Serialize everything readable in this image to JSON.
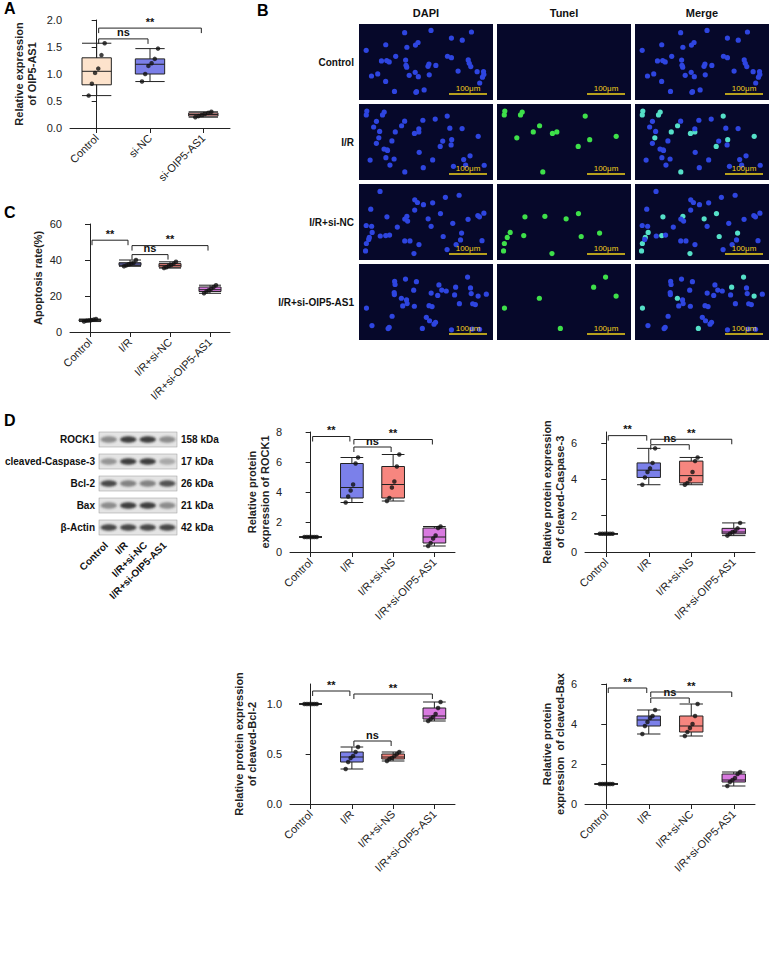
{
  "chart_data": [
    {
      "panel": "A",
      "type": "boxplot",
      "y_label": "Relative expression  of OIP5-AS1",
      "categories": [
        "Control",
        "si-NC",
        "si-OIP5-AS1"
      ],
      "colors": [
        "#fde3cc",
        "#7b7fe8",
        "#f4a3a0"
      ],
      "boxes": [
        [
          0.6,
          0.8,
          1.05,
          1.3,
          1.57
        ],
        [
          0.86,
          1.0,
          1.18,
          1.28,
          1.47
        ],
        [
          0.2,
          0.22,
          0.25,
          0.28,
          0.3
        ]
      ],
      "points": [
        [
          0.6,
          0.82,
          1.02,
          1.1,
          1.35,
          1.57
        ],
        [
          0.86,
          1.0,
          1.15,
          1.2,
          1.28,
          1.47
        ],
        [
          0.2,
          0.22,
          0.24,
          0.26,
          0.28,
          0.3
        ]
      ],
      "ylim": [
        0,
        2
      ],
      "yticks": [
        {
          "value": 0,
          "label": "0.0"
        },
        {
          "value": 0.5,
          "label": "0.5"
        },
        {
          "value": 1,
          "label": "1.0"
        },
        {
          "value": 1.5,
          "label": "1.5"
        },
        {
          "value": 2,
          "label": "2.0"
        }
      ],
      "brackets": [
        {
          "from": "Control",
          "to": "si-NC",
          "y": 1.65,
          "label": "ns"
        },
        {
          "from": "Control",
          "to": "si-OIP5-AS1",
          "y": 1.85,
          "label": "**"
        }
      ],
      "grid": false
    },
    {
      "panel": "C",
      "type": "boxplot",
      "y_label": "Apoptosis rate(%)",
      "categories": [
        "Control",
        "I/R",
        "I/R+si-NC",
        "I/R+si-OIP5-AS1"
      ],
      "colors": [
        "#fde3cc",
        "#7b80ea",
        "#f7867f",
        "#d97ae0"
      ],
      "boxes": [
        [
          5.8,
          6.1,
          6.5,
          6.9,
          7.2
        ],
        [
          36.5,
          37,
          37.8,
          38.5,
          40
        ],
        [
          35.5,
          36,
          37,
          38,
          39
        ],
        [
          21.5,
          22.5,
          23.5,
          25,
          26
        ]
      ],
      "points": [
        [
          5.8,
          6.2,
          6.4,
          6.6,
          6.9,
          7.2
        ],
        [
          36.5,
          37,
          37.6,
          38,
          38.5,
          40
        ],
        [
          35.5,
          36,
          36.8,
          37.2,
          38,
          39
        ],
        [
          21.5,
          22.5,
          23.2,
          24,
          25,
          26
        ]
      ],
      "ylim": [
        0,
        60
      ],
      "yticks": [
        0,
        20,
        40,
        60
      ],
      "brackets": [
        {
          "from": "Control",
          "to": "I/R",
          "y": 51,
          "label": "**"
        },
        {
          "from": "I/R",
          "to": "I/R+si-NC",
          "y": 43,
          "label": "ns"
        },
        {
          "from": "I/R",
          "to": "I/R+si-OIP5-AS1",
          "y": 48,
          "label": "**"
        }
      ],
      "grid": false
    },
    {
      "type": "boxplot",
      "y_label": "Relative protein expression of ROCK1",
      "categories": [
        "Control",
        "I/R",
        "I/R+si-NS",
        "I/R+si-OIP5-AS1"
      ],
      "colors": [
        "#fde3cc",
        "#7b80ea",
        "#f7867f",
        "#d97ae0"
      ],
      "boxes": [
        [
          1,
          1,
          1,
          1,
          1
        ],
        [
          3.3,
          3.6,
          4.3,
          5.9,
          6.3
        ],
        [
          3.4,
          3.6,
          4.5,
          5.7,
          6.5
        ],
        [
          0.4,
          0.6,
          1.0,
          1.6,
          1.7
        ]
      ],
      "points": [
        [
          1,
          1,
          1,
          1,
          1,
          1
        ],
        [
          3.3,
          3.7,
          4.1,
          4.5,
          5.9,
          6.3
        ],
        [
          3.4,
          3.6,
          4.3,
          4.7,
          5.7,
          6.5
        ],
        [
          0.4,
          0.6,
          0.9,
          1.1,
          1.6,
          1.7
        ]
      ],
      "ylim": [
        0,
        8
      ],
      "yticks": [
        0,
        2,
        4,
        6,
        8
      ],
      "brackets": [
        {
          "from": "Control",
          "to": "I/R",
          "y": 7.7,
          "label": "**"
        },
        {
          "from": "I/R",
          "to": "I/R+si-NS",
          "y": 7.0,
          "label": "ns"
        },
        {
          "from": "I/R",
          "to": "I/R+si-OIP5-AS1",
          "y": 7.5,
          "label": "**"
        }
      ],
      "grid": false
    },
    {
      "type": "boxplot",
      "y_label": "Relative protein expression  of cleaved-Caspase-3",
      "categories": [
        "Control",
        "I/R",
        "I/R+si-NS",
        "I/R+si-OIP5-AS1"
      ],
      "colors": [
        "#fde3cc",
        "#7b80ea",
        "#f7867f",
        "#d97ae0"
      ],
      "boxes": [
        [
          1,
          1,
          1,
          1,
          1
        ],
        [
          3.7,
          4.1,
          4.5,
          4.9,
          5.7
        ],
        [
          3.7,
          3.8,
          4.2,
          5.0,
          5.2
        ],
        [
          0.9,
          1.0,
          1.1,
          1.3,
          1.6
        ]
      ],
      "points": [
        [
          1,
          1,
          1,
          1,
          1,
          1
        ],
        [
          3.7,
          4.1,
          4.4,
          4.6,
          4.9,
          5.7
        ],
        [
          3.7,
          3.8,
          4.0,
          4.4,
          5.0,
          5.2
        ],
        [
          0.9,
          1.0,
          1.1,
          1.15,
          1.3,
          1.6
        ]
      ],
      "ylim": [
        0,
        6.6
      ],
      "yticks": [
        0,
        2,
        4,
        6
      ],
      "brackets": [
        {
          "from": "Control",
          "to": "I/R",
          "y": 6.4,
          "label": "**"
        },
        {
          "from": "I/R",
          "to": "I/R+si-NS",
          "y": 5.9,
          "label": "ns"
        },
        {
          "from": "I/R",
          "to": "I/R+si-OIP5-AS1",
          "y": 6.2,
          "label": "**"
        }
      ],
      "grid": false
    },
    {
      "type": "boxplot",
      "y_label": "Relative protein expression  of cleaved-Bcl-2",
      "categories": [
        "Control",
        "I/R",
        "I/R+si-NS",
        "I/R+si-OIP5-AS1"
      ],
      "colors": [
        "#fde3cc",
        "#7b80ea",
        "#f7867f",
        "#d97ae0"
      ],
      "boxes": [
        [
          1,
          1,
          1,
          1,
          1
        ],
        [
          0.35,
          0.42,
          0.47,
          0.52,
          0.57
        ],
        [
          0.43,
          0.45,
          0.47,
          0.5,
          0.52
        ],
        [
          0.83,
          0.85,
          0.88,
          0.96,
          1.02
        ]
      ],
      "points": [
        [
          1,
          1,
          1,
          1,
          1,
          1
        ],
        [
          0.35,
          0.42,
          0.46,
          0.48,
          0.52,
          0.57
        ],
        [
          0.43,
          0.45,
          0.46,
          0.48,
          0.5,
          0.52
        ],
        [
          0.83,
          0.85,
          0.87,
          0.9,
          0.96,
          1.02
        ]
      ],
      "ylim": [
        0,
        1.2
      ],
      "yticks": [
        {
          "value": 0,
          "label": "0.0"
        },
        {
          "value": 0.5,
          "label": "0.5"
        },
        {
          "value": 1,
          "label": "1.0"
        }
      ],
      "brackets": [
        {
          "from": "Control",
          "to": "I/R",
          "y": 1.13,
          "label": "**"
        },
        {
          "from": "I/R",
          "to": "I/R+si-NS",
          "y": 0.63,
          "label": "ns"
        },
        {
          "from": "I/R",
          "to": "I/R+si-OIP5-AS1",
          "y": 1.1,
          "label": "**"
        }
      ],
      "grid": false
    },
    {
      "type": "boxplot",
      "y_label": "Relative protein expression  of cleaved-Bax",
      "categories": [
        "Control",
        "I/R",
        "I/R+si-NC",
        "I/R+si-OIP5-AS1"
      ],
      "colors": [
        "#fde3cc",
        "#7b80ea",
        "#f7867f",
        "#d97ae0"
      ],
      "boxes": [
        [
          1,
          1,
          1,
          1,
          1
        ],
        [
          3.5,
          3.9,
          4.2,
          4.4,
          4.7
        ],
        [
          3.4,
          3.6,
          3.9,
          4.4,
          5.0
        ],
        [
          0.9,
          1.1,
          1.2,
          1.5,
          1.6
        ]
      ],
      "points": [
        [
          1,
          1,
          1,
          1,
          1,
          1
        ],
        [
          3.5,
          3.9,
          4.1,
          4.3,
          4.4,
          4.7
        ],
        [
          3.4,
          3.6,
          3.8,
          4.0,
          4.4,
          5.0
        ],
        [
          0.9,
          1.1,
          1.2,
          1.3,
          1.5,
          1.6
        ]
      ],
      "ylim": [
        0,
        6
      ],
      "yticks": [
        0,
        2,
        4,
        6
      ],
      "brackets": [
        {
          "from": "Control",
          "to": "I/R",
          "y": 5.8,
          "label": "**"
        },
        {
          "from": "I/R",
          "to": "I/R+si-NC",
          "y": 5.3,
          "label": "ns"
        },
        {
          "from": "I/R",
          "to": "I/R+si-OIP5-AS1",
          "y": 5.6,
          "label": "**"
        }
      ],
      "grid": false
    }
  ],
  "images": {
    "panel": "B",
    "columns": [
      "DAPI",
      "Tunel",
      "Merge"
    ],
    "rows": [
      "Control",
      "I/R",
      "I/R+si-NC",
      "I/R+si-OIP5-AS1"
    ],
    "scale_bar": "100μm"
  },
  "blot": {
    "panel": "D",
    "bands": [
      {
        "name": "ROCK1",
        "size": "158 kDa"
      },
      {
        "name": "cleaved-Caspase-3",
        "size": "17 kDa"
      },
      {
        "name": "Bcl-2",
        "size": "26 kDa"
      },
      {
        "name": "Bax",
        "size": "21 kDa"
      },
      {
        "name": "β-Actin",
        "size": "42 kDa"
      }
    ],
    "lanes": [
      "Control",
      "I/R",
      "I/R+si-NC",
      "I/R+si-OIP5-AS1"
    ]
  }
}
